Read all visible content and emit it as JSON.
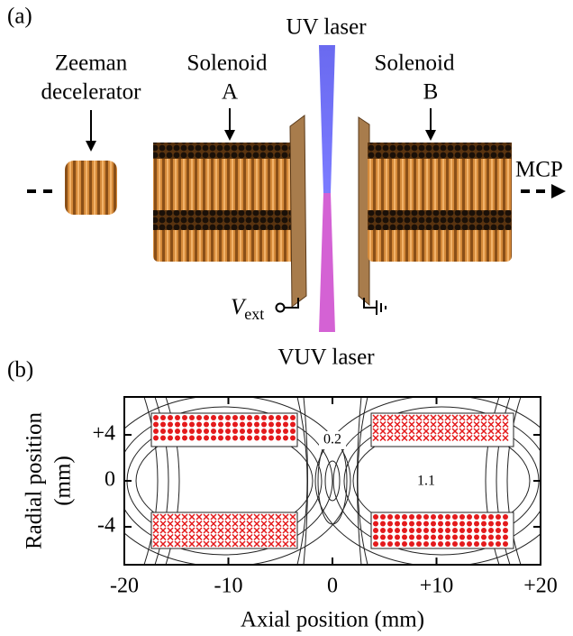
{
  "panel_a": {
    "label": "(a)",
    "uv_laser": "UV laser",
    "vuv_laser": "VUV laser",
    "zeeman": [
      "Zeeman",
      "decelerator"
    ],
    "solenoid_a": [
      "Solenoid",
      "A"
    ],
    "solenoid_b": [
      "Solenoid",
      "B"
    ],
    "mcp": "MCP",
    "v_ext": {
      "symbol": "V",
      "subscript": "ext"
    }
  },
  "chart_data": {
    "type": "contour",
    "panel_label": "(b)",
    "xlabel": "Axial position (mm)",
    "ylabel": [
      "Radial position",
      "(mm)"
    ],
    "xlim": [
      -20,
      20
    ],
    "ylim": [
      -7.3,
      7.3
    ],
    "xticks": [
      -20,
      -10,
      0,
      {
        "value": 10,
        "label": "+10"
      },
      {
        "value": 20,
        "label": "+20"
      }
    ],
    "yticks": [
      -4,
      0,
      {
        "value": 4,
        "label": "+4"
      }
    ],
    "contour_labels": [
      0.2,
      1.1
    ]
  }
}
